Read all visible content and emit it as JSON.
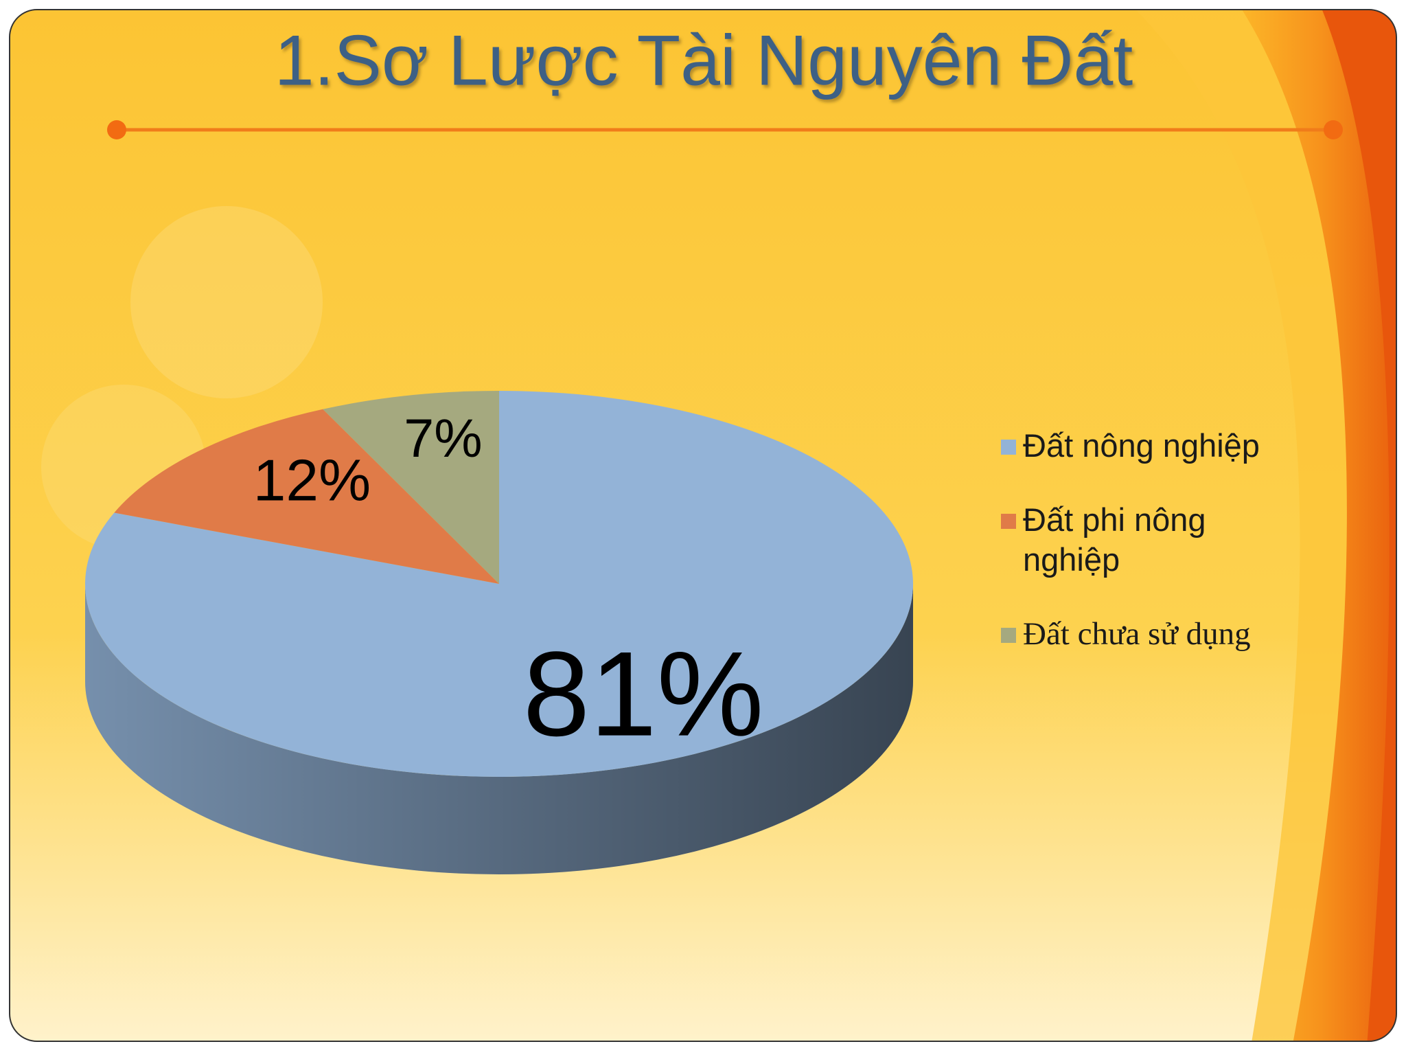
{
  "chart_data": {
    "type": "pie",
    "title": "1.Sơ Lược Tài Nguyên Đất",
    "categories": [
      "Đất nông nghiệp",
      "Đất phi nông nghiệp",
      "Đất chưa sử dụng"
    ],
    "values": [
      81,
      12,
      7
    ],
    "value_labels": [
      "81%",
      "12%",
      "7%"
    ],
    "colors": [
      "#93b3d7",
      "#e07b48",
      "#a5a97f"
    ],
    "legend": "right"
  }
}
